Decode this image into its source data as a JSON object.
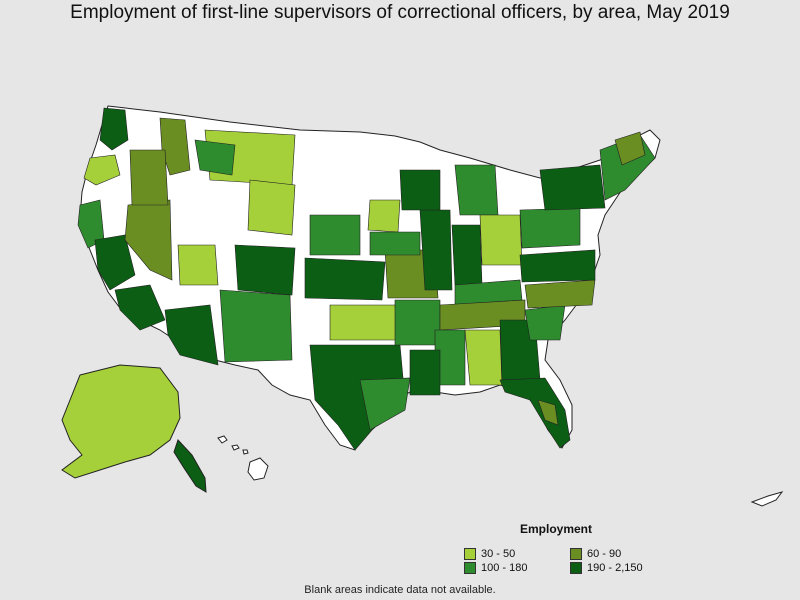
{
  "title": "Employment of first-line supervisors of correctional officers, by area, May 2019",
  "legend": {
    "title": "Employment",
    "bins": [
      {
        "label": "30 - 50",
        "color": "#a6d03a"
      },
      {
        "label": "60 - 90",
        "color": "#6b8e23"
      },
      {
        "label": "100 - 180",
        "color": "#2e8b2e"
      },
      {
        "label": "190 - 2,150",
        "color": "#0b5e14"
      }
    ]
  },
  "note": "Blank areas indicate data not available.",
  "colors": {
    "background": "#e6e6e6",
    "no_data": "#ffffff",
    "border": "#222222"
  }
}
